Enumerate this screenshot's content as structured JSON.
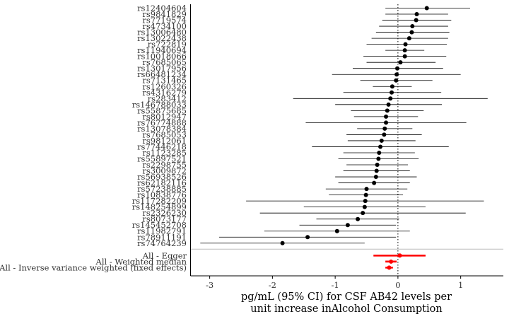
{
  "chart_data": {
    "type": "forest",
    "xlabel_lines": [
      "pg/mL (95% CI) for CSF AB42 levels per",
      "unit increase inAlcohol Consumption"
    ],
    "xlim": [
      -3.3,
      1.68
    ],
    "xticks": [
      -3,
      -2,
      -1,
      0,
      1
    ],
    "reference_line": 0,
    "colors": {
      "snp": "#000000",
      "summary": "#ff0000",
      "separator": "#bebebe"
    },
    "snps": [
      {
        "label": "rs12404604",
        "est": 0.46,
        "lo": -0.2,
        "hi": 1.15
      },
      {
        "label": "rs9841829",
        "est": 0.3,
        "lo": -0.2,
        "hi": 0.8
      },
      {
        "label": "rs7719574",
        "est": 0.29,
        "lo": -0.25,
        "hi": 0.85
      },
      {
        "label": "rs4734100",
        "est": 0.23,
        "lo": -0.3,
        "hi": 0.8
      },
      {
        "label": "rs13006480",
        "est": 0.22,
        "lo": -0.35,
        "hi": 0.82
      },
      {
        "label": "rs13022438",
        "est": 0.18,
        "lo": -0.42,
        "hi": 0.8
      },
      {
        "label": "rs722819",
        "est": 0.12,
        "lo": -0.5,
        "hi": 0.78
      },
      {
        "label": "rs11940694",
        "est": 0.11,
        "lo": -0.2,
        "hi": 0.42
      },
      {
        "label": "rs10018066",
        "est": 0.11,
        "lo": -0.55,
        "hi": 0.77
      },
      {
        "label": "rs7685065",
        "est": 0.04,
        "lo": -0.5,
        "hi": 0.6
      },
      {
        "label": "rs13017956",
        "est": -0.01,
        "lo": -0.72,
        "hi": 0.72
      },
      {
        "label": "rs66481234",
        "est": -0.02,
        "lo": -1.05,
        "hi": 1.0
      },
      {
        "label": "rs7131465",
        "est": -0.03,
        "lo": -0.6,
        "hi": 0.55
      },
      {
        "label": "rs1260326",
        "est": -0.09,
        "lo": -0.4,
        "hi": 0.22
      },
      {
        "label": "rs4316279",
        "est": -0.1,
        "lo": -0.87,
        "hi": 0.69
      },
      {
        "label": "rs283412",
        "est": -0.12,
        "lo": -1.67,
        "hi": 1.43
      },
      {
        "label": "rs146788033",
        "est": -0.15,
        "lo": -1.0,
        "hi": 0.7
      },
      {
        "label": "rs55875685",
        "est": -0.17,
        "lo": -0.75,
        "hi": 0.41
      },
      {
        "label": "rs8012947",
        "est": -0.19,
        "lo": -0.7,
        "hi": 0.32
      },
      {
        "label": "rs76774888",
        "est": -0.19,
        "lo": -1.47,
        "hi": 1.09
      },
      {
        "label": "rs13078384",
        "est": -0.21,
        "lo": -0.65,
        "hi": 0.23
      },
      {
        "label": "rs7685053",
        "est": -0.22,
        "lo": -0.82,
        "hi": 0.38
      },
      {
        "label": "rs9812061",
        "est": -0.26,
        "lo": -0.8,
        "hi": 0.28
      },
      {
        "label": "rs77446218",
        "est": -0.28,
        "lo": -1.37,
        "hi": 0.81
      },
      {
        "label": "rs1123285",
        "est": -0.3,
        "lo": -0.87,
        "hi": 0.27
      },
      {
        "label": "rs55897521",
        "est": -0.31,
        "lo": -0.95,
        "hi": 0.33
      },
      {
        "label": "rs2298755",
        "est": -0.33,
        "lo": -0.82,
        "hi": 0.16
      },
      {
        "label": "rs3009872",
        "est": -0.34,
        "lo": -0.87,
        "hi": 0.19
      },
      {
        "label": "rs56938526",
        "est": -0.35,
        "lo": -1.0,
        "hi": 0.3
      },
      {
        "label": "rs62182116",
        "est": -0.38,
        "lo": -0.95,
        "hi": 0.19
      },
      {
        "label": "rs57238885",
        "est": -0.5,
        "lo": -1.15,
        "hi": 0.15
      },
      {
        "label": "rs10838776",
        "est": -0.51,
        "lo": -1.1,
        "hi": 0.08
      },
      {
        "label": "rs117282209",
        "est": -0.52,
        "lo": -2.42,
        "hi": 1.37
      },
      {
        "label": "rs148254899",
        "est": -0.53,
        "lo": -1.5,
        "hi": 0.44
      },
      {
        "label": "rs2326230",
        "est": -0.56,
        "lo": -2.2,
        "hi": 1.08
      },
      {
        "label": "rs8073177",
        "est": -0.64,
        "lo": -1.3,
        "hi": 0.02
      },
      {
        "label": "rs145452708",
        "est": -0.8,
        "lo": -1.57,
        "hi": -0.03
      },
      {
        "label": "rs11982791",
        "est": -0.97,
        "lo": -2.13,
        "hi": 0.19
      },
      {
        "label": "rs78911191",
        "est": -1.44,
        "lo": -2.85,
        "hi": -0.03
      },
      {
        "label": "rs74764239",
        "est": -1.84,
        "lo": -3.15,
        "hi": -0.53
      }
    ],
    "summaries": [
      {
        "label": "All - Egger",
        "est": 0.03,
        "lo": -0.39,
        "hi": 0.44
      },
      {
        "label": "All - Weighted median",
        "est": -0.11,
        "lo": -0.2,
        "hi": -0.02
      },
      {
        "label": "All - Inverse variance weighted (fixed effects)",
        "est": -0.14,
        "lo": -0.2,
        "hi": -0.08
      }
    ]
  }
}
